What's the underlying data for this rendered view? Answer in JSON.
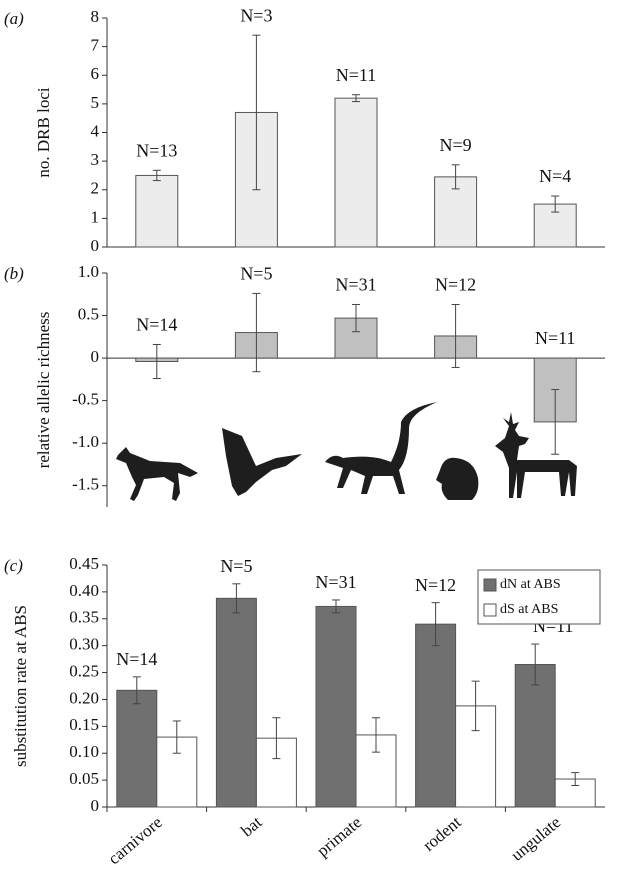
{
  "chart_data": [
    {
      "type": "bar",
      "panel_label": "(a)",
      "ylabel": "no. DRB loci",
      "values": [
        2.5,
        4.7,
        5.2,
        2.45,
        1.5
      ],
      "errors": [
        0.18,
        2.7,
        0.12,
        0.42,
        0.28
      ],
      "annotations": [
        "N=13",
        "N=3",
        "N=11",
        "N=9",
        "N=4"
      ],
      "color": "#ececec",
      "ylim": [
        0,
        8
      ],
      "yticks": [
        0,
        1,
        2,
        3,
        4,
        5,
        6,
        7,
        8
      ]
    },
    {
      "type": "bar",
      "panel_label": "(b)",
      "ylabel": "relative allelic richness",
      "values": [
        -0.04,
        0.3,
        0.47,
        0.26,
        -0.75
      ],
      "errors": [
        0.2,
        0.46,
        0.16,
        0.37,
        0.38
      ],
      "annotations": [
        "N=14",
        "N=5",
        "N=31",
        "N=12",
        "N=11"
      ],
      "color": "#c0c0c0",
      "ylim": [
        -1.75,
        1.0
      ],
      "yticks": [
        {
          "value": 1.0,
          "label": "1.0"
        },
        0.5,
        0,
        -0.5,
        {
          "value": -1.0,
          "label": "-1.0"
        },
        -1.5
      ]
    },
    {
      "type": "grouped_bar",
      "panel_label": "(c)",
      "ylabel": "substitution rate at ABS",
      "categories": [
        "carnivore",
        "bat",
        "primate",
        "rodent",
        "ungulate"
      ],
      "series": [
        {
          "name": "dN at ABS",
          "color": "#707070",
          "values": [
            0.217,
            0.388,
            0.373,
            0.34,
            0.265
          ],
          "errors": [
            0.025,
            0.027,
            0.012,
            0.04,
            0.038
          ]
        },
        {
          "name": "dS at ABS",
          "color": "#ffffff",
          "values": [
            0.13,
            0.128,
            0.134,
            0.188,
            0.052
          ],
          "errors": [
            0.03,
            0.038,
            0.032,
            0.046,
            0.012
          ]
        }
      ],
      "annotations": [
        "N=14",
        "N=5",
        "N=31",
        "N=12",
        "N=11"
      ],
      "ylim": [
        0,
        0.45
      ],
      "yticks": [
        0,
        0.05,
        {
          "value": 0.1,
          "label": "0.10"
        },
        0.15,
        {
          "value": 0.2,
          "label": "0.20"
        },
        0.25,
        {
          "value": 0.3,
          "label": "0.30"
        },
        0.35,
        {
          "value": 0.4,
          "label": "0.40"
        },
        0.45
      ],
      "legend": "top-right"
    }
  ]
}
